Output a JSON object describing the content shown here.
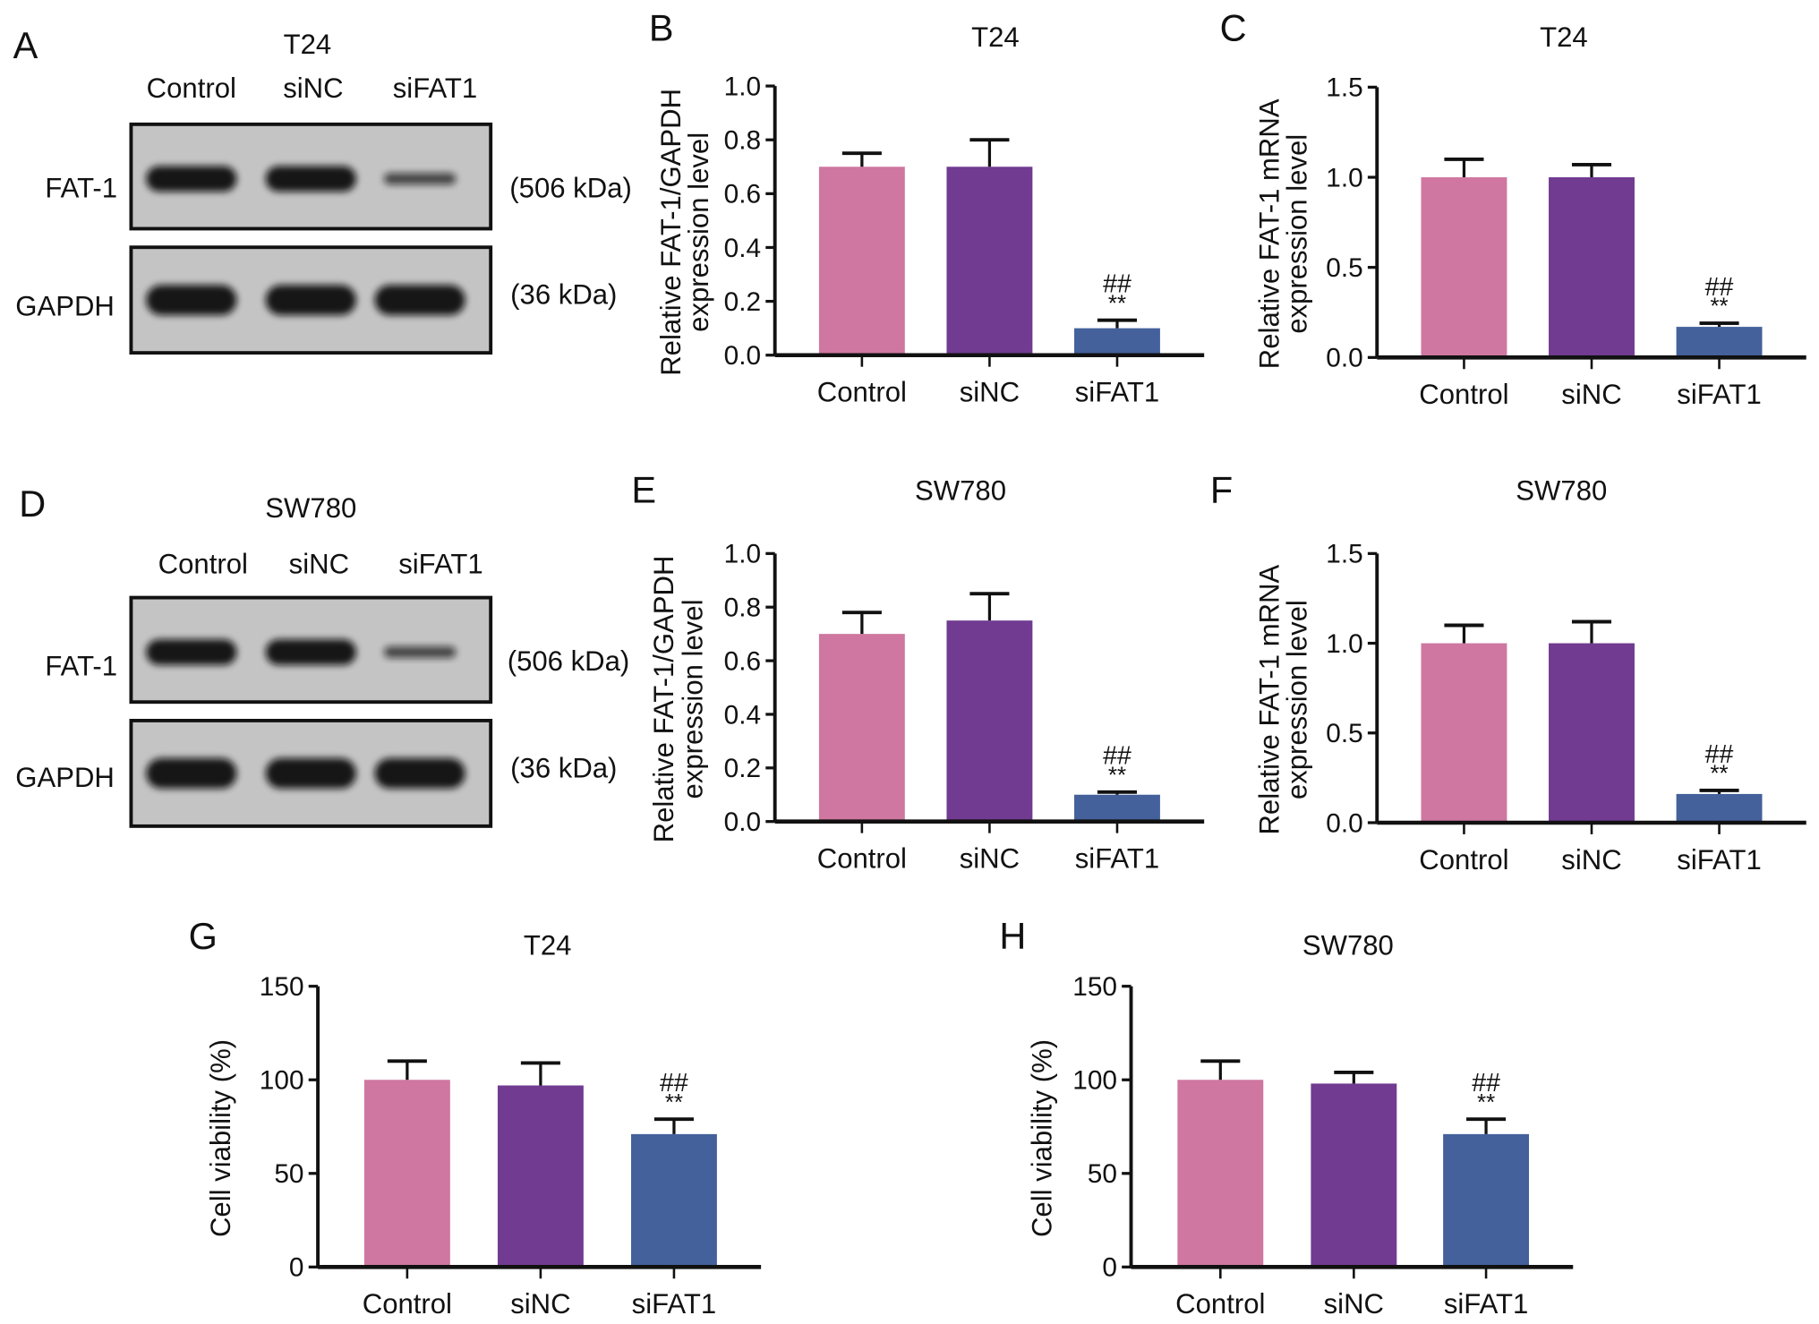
{
  "colors": {
    "Control": "#cf77a0",
    "siNC": "#703b90",
    "siFAT1": "#44619b"
  },
  "blots": [
    {
      "panel": "A",
      "cell_line": "T24",
      "lanes": [
        "Control",
        "siNC",
        "siFAT1"
      ],
      "rows": [
        {
          "protein": "FAT-1",
          "size": "(506 kDa)"
        },
        {
          "protein": "GAPDH",
          "size": "(36 kDa)"
        }
      ]
    },
    {
      "panel": "D",
      "cell_line": "SW780",
      "lanes": [
        "Control",
        "siNC",
        "siFAT1"
      ],
      "rows": [
        {
          "protein": "FAT-1",
          "size": "(506 kDa)"
        },
        {
          "protein": "GAPDH",
          "size": "(36 kDa)"
        }
      ]
    }
  ],
  "chart_data": [
    {
      "panel": "B",
      "type": "bar",
      "title": "T24",
      "ylabel": [
        "Relative FAT-1/GAPDH",
        "expression level"
      ],
      "categories": [
        "Control",
        "siNC",
        "siFAT1"
      ],
      "values": [
        0.7,
        0.7,
        0.1
      ],
      "errors": [
        0.05,
        0.1,
        0.03
      ],
      "ylim": [
        0,
        1.0
      ],
      "yticks": [
        "0.0",
        "0.2",
        "0.4",
        "0.6",
        "0.8",
        "1.0"
      ],
      "annotations": [
        "",
        "",
        "##\n**"
      ]
    },
    {
      "panel": "C",
      "type": "bar",
      "title": "T24",
      "ylabel": [
        "Relative FAT-1 mRNA",
        "expression level"
      ],
      "categories": [
        "Control",
        "siNC",
        "siFAT1"
      ],
      "values": [
        1.0,
        1.0,
        0.17
      ],
      "errors": [
        0.1,
        0.07,
        0.02
      ],
      "ylim": [
        0,
        1.5
      ],
      "yticks": [
        "0.0",
        "0.5",
        "1.0",
        "1.5"
      ],
      "annotations": [
        "",
        "",
        "##\n**"
      ]
    },
    {
      "panel": "E",
      "type": "bar",
      "title": "SW780",
      "ylabel": [
        "Relative FAT-1/GAPDH",
        "expression level"
      ],
      "categories": [
        "Control",
        "siNC",
        "siFAT1"
      ],
      "values": [
        0.7,
        0.75,
        0.1
      ],
      "errors": [
        0.08,
        0.1,
        0.01
      ],
      "ylim": [
        0,
        1.0
      ],
      "yticks": [
        "0.0",
        "0.2",
        "0.4",
        "0.6",
        "0.8",
        "1.0"
      ],
      "annotations": [
        "",
        "",
        "##\n**"
      ]
    },
    {
      "panel": "F",
      "type": "bar",
      "title": "SW780",
      "ylabel": [
        "Relative FAT-1 mRNA",
        "expression level"
      ],
      "categories": [
        "Control",
        "siNC",
        "siFAT1"
      ],
      "values": [
        1.0,
        1.0,
        0.16
      ],
      "errors": [
        0.1,
        0.12,
        0.02
      ],
      "ylim": [
        0,
        1.5
      ],
      "yticks": [
        "0.0",
        "0.5",
        "1.0",
        "1.5"
      ],
      "annotations": [
        "",
        "",
        "##\n**"
      ]
    },
    {
      "panel": "G",
      "type": "bar",
      "title": "T24",
      "ylabel": [
        "Cell viability (%)"
      ],
      "categories": [
        "Control",
        "siNC",
        "siFAT1"
      ],
      "values": [
        100,
        97,
        71
      ],
      "errors": [
        10,
        12,
        8
      ],
      "ylim": [
        0,
        150
      ],
      "yticks": [
        "0",
        "50",
        "100",
        "150"
      ],
      "annotations": [
        "",
        "",
        "##\n**"
      ]
    },
    {
      "panel": "H",
      "type": "bar",
      "title": "SW780",
      "ylabel": [
        "Cell viability (%)"
      ],
      "categories": [
        "Control",
        "siNC",
        "siFAT1"
      ],
      "values": [
        100,
        98,
        71
      ],
      "errors": [
        10,
        6,
        8
      ],
      "ylim": [
        0,
        150
      ],
      "yticks": [
        "0",
        "50",
        "100",
        "150"
      ],
      "annotations": [
        "",
        "",
        "##\n**"
      ]
    }
  ]
}
